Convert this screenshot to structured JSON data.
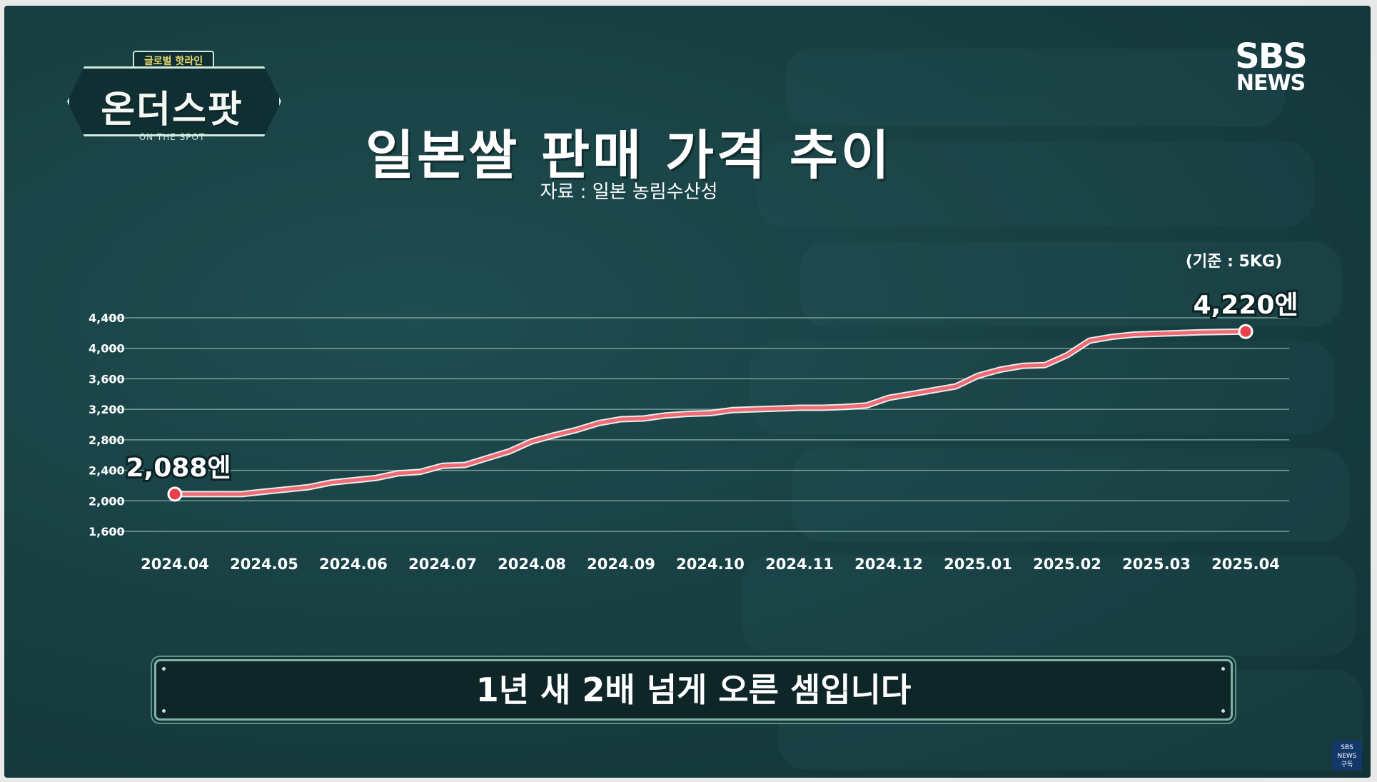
{
  "logo": {
    "top": "글로벌 핫라인",
    "main": "온더스팟",
    "sub": "ON THE SPOT"
  },
  "broadcaster": {
    "line1": "SBS",
    "line2": "NEWS"
  },
  "title": "일본쌀 판매 가격 추이",
  "source": "자료 : 일본 농림수산성",
  "unit": "(기준 : 5KG)",
  "caption": "1년 새 2배 넘게 오른 셈입니다",
  "subscribe_badge": {
    "line1": "SBS",
    "line2": "NEWS",
    "line3": "구독"
  },
  "colors": {
    "background": "#173e41",
    "line": "#f06b73",
    "marker": "#e9414b",
    "grid": "#8fb3ae",
    "text": "#ffffff"
  },
  "chart_data": {
    "type": "line",
    "title": "일본쌀 판매 가격 추이",
    "x_tick_labels": [
      "2024.04",
      "2024.05",
      "2024.06",
      "2024.07",
      "2024.08",
      "2024.09",
      "2024.10",
      "2024.11",
      "2024.12",
      "2025.01",
      "2025.02",
      "2025.03",
      "2025.04"
    ],
    "y_tick_labels": [
      "1,600",
      "2,000",
      "2,400",
      "2,800",
      "3,200",
      "3,600",
      "4,000",
      "4,400"
    ],
    "y_ticks": [
      1600,
      2000,
      2400,
      2800,
      3200,
      3600,
      4000,
      4400
    ],
    "ylim": [
      1600,
      4600
    ],
    "grid": true,
    "series": [
      {
        "values": [
          2088,
          2088,
          2088,
          2088,
          2120,
          2150,
          2180,
          2240,
          2270,
          2300,
          2360,
          2380,
          2460,
          2470,
          2560,
          2650,
          2780,
          2860,
          2930,
          3020,
          3070,
          3080,
          3120,
          3140,
          3150,
          3190,
          3200,
          3210,
          3220,
          3220,
          3230,
          3250,
          3350,
          3400,
          3450,
          3500,
          3640,
          3720,
          3770,
          3780,
          3910,
          4100,
          4150,
          4180,
          4190,
          4200,
          4210,
          4220
        ],
        "point_positions": [
          0,
          0.25,
          0.5,
          0.75,
          1,
          1.25,
          1.5,
          1.75,
          2,
          2.25,
          2.5,
          2.75,
          3,
          3.25,
          3.5,
          3.75,
          4,
          4.25,
          4.5,
          4.75,
          5,
          5.25,
          5.5,
          5.75,
          6,
          6.25,
          6.5,
          6.75,
          7,
          7.25,
          7.5,
          7.75,
          8,
          8.25,
          8.5,
          8.75,
          9,
          9.25,
          9.5,
          9.75,
          10,
          10.25,
          10.5,
          10.75,
          11,
          11.25,
          11.5,
          12
        ]
      }
    ],
    "annotations": [
      {
        "label": "2,088엔",
        "value": 2088,
        "x_label": "2024.04"
      },
      {
        "label": "4,220엔",
        "value": 4220,
        "x_label": "2025.04"
      }
    ]
  }
}
